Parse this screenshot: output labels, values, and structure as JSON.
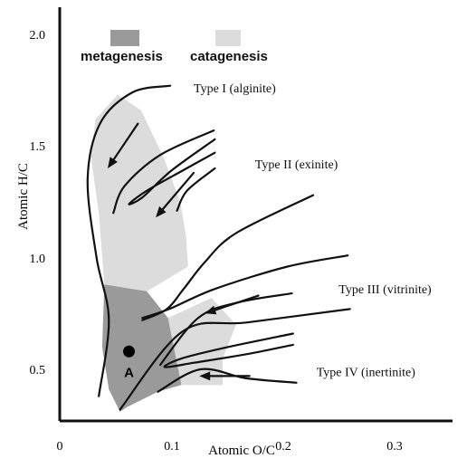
{
  "chart_data": {
    "type": "line",
    "title": "",
    "xlabel": "Atomic O/C",
    "ylabel": "Atomic H/C",
    "xlim": [
      0,
      0.35
    ],
    "ylim": [
      0.2,
      2.1
    ],
    "x_ticks": [
      "0",
      "0.1",
      "0.2",
      "0.3"
    ],
    "y_ticks": [
      "0.5",
      "1.0",
      "1.5",
      "2.0"
    ],
    "grid": false,
    "legend_position": "top-left",
    "legend": [
      {
        "label": "metagenesis",
        "color": "#9a9a9a"
      },
      {
        "label": "catagenesis",
        "color": "#dcdcdc"
      }
    ],
    "zones": [
      {
        "name": "catagenesis",
        "color": "#dcdcdc",
        "polygon": [
          [
            0.052,
            1.73
          ],
          [
            0.032,
            1.62
          ],
          [
            0.028,
            1.45
          ],
          [
            0.035,
            1.2
          ],
          [
            0.04,
            0.88
          ],
          [
            0.078,
            0.85
          ],
          [
            0.115,
            0.96
          ],
          [
            0.113,
            1.1
          ],
          [
            0.108,
            1.25
          ],
          [
            0.093,
            1.45
          ],
          [
            0.073,
            1.66
          ]
        ]
      },
      {
        "name": "catagenesis",
        "color": "#dcdcdc",
        "polygon": [
          [
            0.097,
            0.73
          ],
          [
            0.136,
            0.82
          ],
          [
            0.158,
            0.7
          ],
          [
            0.146,
            0.55
          ],
          [
            0.146,
            0.43
          ],
          [
            0.109,
            0.43
          ],
          [
            0.105,
            0.53
          ]
        ]
      },
      {
        "name": "metagenesis",
        "color": "#9a9a9a",
        "polygon": [
          [
            0.04,
            0.88
          ],
          [
            0.078,
            0.85
          ],
          [
            0.097,
            0.73
          ],
          [
            0.105,
            0.53
          ],
          [
            0.109,
            0.43
          ],
          [
            0.088,
            0.4
          ],
          [
            0.06,
            0.33
          ],
          [
            0.054,
            0.31
          ],
          [
            0.044,
            0.41
          ],
          [
            0.038,
            0.6
          ]
        ]
      }
    ],
    "series": [
      {
        "points": [
          [
            0.099,
            1.77
          ],
          [
            0.065,
            1.74
          ],
          [
            0.036,
            1.6
          ],
          [
            0.025,
            1.35
          ],
          [
            0.033,
            1.0
          ],
          [
            0.044,
            0.72
          ],
          [
            0.035,
            0.38
          ]
        ]
      },
      {
        "points": [
          [
            0.138,
            1.57
          ],
          [
            0.09,
            1.46
          ],
          [
            0.058,
            1.32
          ],
          [
            0.048,
            1.2
          ]
        ]
      },
      {
        "points": [
          [
            0.139,
            1.53
          ],
          [
            0.1,
            1.39
          ],
          [
            0.074,
            1.27
          ],
          [
            0.062,
            1.24
          ],
          [
            0.078,
            1.3
          ],
          [
            0.11,
            1.39
          ],
          [
            0.139,
            1.47
          ]
        ]
      },
      {
        "points": [
          [
            0.139,
            1.4
          ],
          [
            0.114,
            1.3
          ],
          [
            0.105,
            1.21
          ]
        ]
      },
      {
        "points": [
          [
            0.227,
            1.28
          ],
          [
            0.158,
            1.11
          ],
          [
            0.13,
            0.98
          ],
          [
            0.111,
            0.86
          ],
          [
            0.096,
            0.77
          ],
          [
            0.074,
            0.72
          ]
        ]
      },
      {
        "points": [
          [
            0.258,
            1.01
          ],
          [
            0.204,
            0.96
          ],
          [
            0.139,
            0.86
          ],
          [
            0.098,
            0.77
          ],
          [
            0.074,
            0.73
          ]
        ]
      },
      {
        "points": [
          [
            0.26,
            0.77
          ],
          [
            0.168,
            0.71
          ],
          [
            0.11,
            0.67
          ],
          [
            0.054,
            0.32
          ]
        ]
      },
      {
        "points": [
          [
            0.208,
            0.84
          ],
          [
            0.16,
            0.8
          ],
          [
            0.124,
            0.73
          ],
          [
            0.09,
            0.52
          ]
        ]
      },
      {
        "points": [
          [
            0.209,
            0.66
          ],
          [
            0.151,
            0.6
          ],
          [
            0.11,
            0.55
          ],
          [
            0.094,
            0.51
          ],
          [
            0.121,
            0.53
          ],
          [
            0.17,
            0.57
          ],
          [
            0.209,
            0.61
          ]
        ]
      },
      {
        "points": [
          [
            0.212,
            0.44
          ],
          [
            0.167,
            0.46
          ],
          [
            0.126,
            0.5
          ],
          [
            0.088,
            0.4
          ]
        ]
      }
    ],
    "arrows": [
      {
        "from": [
          0.07,
          1.6
        ],
        "to": [
          0.043,
          1.4
        ]
      },
      {
        "from": [
          0.12,
          1.38
        ],
        "to": [
          0.086,
          1.18
        ]
      },
      {
        "from": [
          0.178,
          0.83
        ],
        "to": [
          0.13,
          0.75
        ]
      },
      {
        "from": [
          0.17,
          0.47
        ],
        "to": [
          0.125,
          0.47
        ]
      }
    ],
    "annotations": [
      {
        "text": "Type I (alginite)",
        "x": 0.12,
        "y": 1.74
      },
      {
        "text": "Type II (exinite)",
        "x": 0.175,
        "y": 1.4
      },
      {
        "text": "Type III (vitrinite)",
        "x": 0.25,
        "y": 0.84
      },
      {
        "text": "Type IV (inertinite)",
        "x": 0.23,
        "y": 0.47
      }
    ],
    "sample_point": {
      "label": "A",
      "x": 0.062,
      "y": 0.58
    }
  }
}
